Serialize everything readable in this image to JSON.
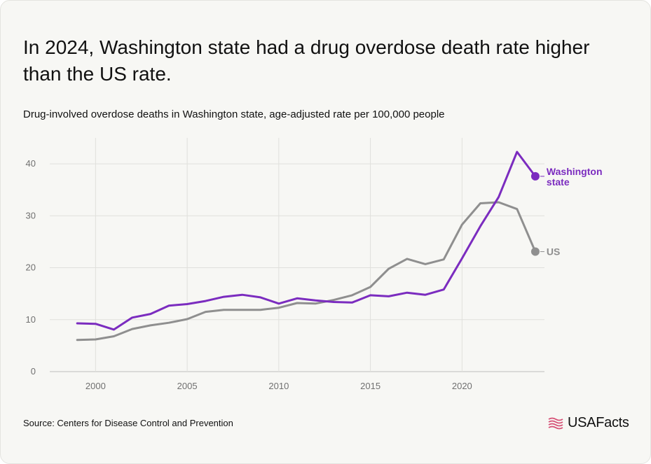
{
  "title": "In 2024, Washington state had a drug overdose death rate higher than the US rate.",
  "subtitle": "Drug-involved overdose deaths in Washington state, age-adjusted rate per 100,000 people",
  "source": "Source: Centers for Disease Control and Prevention",
  "logo": {
    "text": "USAFacts",
    "icon": "us-flag-icon",
    "color": "#d64f75"
  },
  "chart_data": {
    "type": "line",
    "x": [
      1999,
      2000,
      2001,
      2002,
      2003,
      2004,
      2005,
      2006,
      2007,
      2008,
      2009,
      2010,
      2011,
      2012,
      2013,
      2014,
      2015,
      2016,
      2017,
      2018,
      2019,
      2020,
      2021,
      2022,
      2023,
      2024
    ],
    "xlim": [
      1997.5,
      2024.5
    ],
    "ylim": [
      0,
      45
    ],
    "xticks": [
      "2000",
      "2005",
      "2010",
      "2015",
      "2020"
    ],
    "yticks": [
      "0",
      "10",
      "20",
      "30",
      "40"
    ],
    "grid": true,
    "series": [
      {
        "name": "US",
        "color": "#8f8f8f",
        "values": [
          6.1,
          6.2,
          6.8,
          8.2,
          8.9,
          9.4,
          10.1,
          11.5,
          11.9,
          11.9,
          11.9,
          12.3,
          13.2,
          13.1,
          13.8,
          14.7,
          16.3,
          19.8,
          21.7,
          20.7,
          21.6,
          28.3,
          32.4,
          32.6,
          31.3,
          23.1
        ]
      },
      {
        "name": "Washington state",
        "name_lines": [
          "Washington",
          "state"
        ],
        "color": "#7b2cbf",
        "values": [
          9.3,
          9.2,
          8.1,
          10.4,
          11.1,
          12.7,
          13.0,
          13.6,
          14.4,
          14.8,
          14.3,
          13.1,
          14.1,
          13.7,
          13.4,
          13.3,
          14.7,
          14.5,
          15.2,
          14.8,
          15.8,
          21.8,
          28.0,
          33.6,
          42.3,
          37.6
        ]
      }
    ]
  }
}
